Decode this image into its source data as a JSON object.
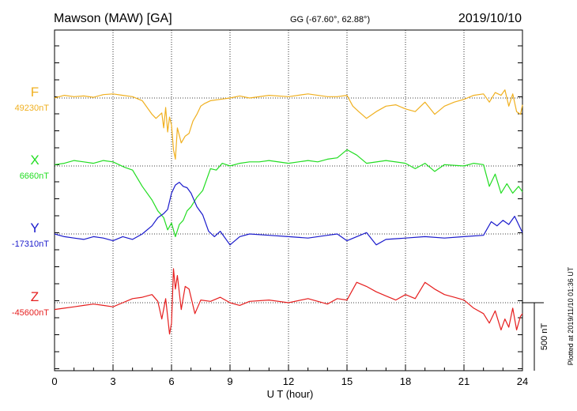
{
  "header": {
    "station": "Mawson (MAW)  [GA]",
    "coords": "GG (-67.60°,  62.88°)",
    "date": "2019/10/10"
  },
  "plotted_note": "Plotted at 2019/11/10 01:36 UT",
  "chart_data": {
    "type": "line",
    "xlabel": "U T (hour)",
    "xlim": [
      0,
      24
    ],
    "xticks": [
      "0",
      "3",
      "6",
      "9",
      "12",
      "15",
      "18",
      "21",
      "24"
    ],
    "scale_bar_label": "500 nT",
    "scale_bar_nT": 500,
    "colors": {
      "F": "#f0b020",
      "X": "#22dd22",
      "Y": "#1a1acc",
      "Z": "#e61e1e",
      "axis": "#000000"
    },
    "series": [
      {
        "name": "F",
        "baseline_label": "49230nT",
        "color": "#f0b020",
        "x": [
          0,
          0.5,
          1,
          1.5,
          2,
          2.5,
          3,
          3.5,
          4,
          4.5,
          5,
          5.2,
          5.5,
          5.6,
          5.7,
          5.8,
          5.9,
          6.0,
          6.1,
          6.2,
          6.3,
          6.5,
          6.7,
          6.9,
          7.1,
          7.3,
          7.5,
          7.7,
          8,
          8.5,
          9,
          9.5,
          10,
          11,
          12,
          13,
          14,
          14.5,
          15,
          15.3,
          15.6,
          16,
          16.5,
          17,
          17.5,
          18,
          18.5,
          19,
          19.5,
          20,
          20.5,
          21,
          21.5,
          22,
          22.3,
          22.6,
          22.9,
          23.1,
          23.3,
          23.5,
          23.7,
          23.9,
          24
        ],
        "values": [
          0,
          20,
          10,
          15,
          5,
          25,
          30,
          20,
          10,
          -20,
          -120,
          -150,
          -110,
          -220,
          -70,
          -250,
          -140,
          -200,
          -380,
          -450,
          -220,
          -330,
          -280,
          -260,
          -170,
          -120,
          -60,
          -40,
          -20,
          -10,
          0,
          15,
          0,
          20,
          10,
          30,
          10,
          10,
          20,
          -60,
          -100,
          -150,
          -100,
          -60,
          -50,
          -80,
          -100,
          -30,
          -120,
          -60,
          -30,
          -10,
          20,
          30,
          -30,
          40,
          20,
          60,
          -60,
          30,
          -100,
          -120,
          -50
        ]
      },
      {
        "name": "X",
        "baseline_label": "6660nT",
        "color": "#22dd22",
        "x": [
          0,
          0.5,
          1,
          1.5,
          2,
          2.5,
          3,
          3.3,
          3.6,
          4,
          4.5,
          5,
          5.3,
          5.6,
          5.8,
          6.0,
          6.2,
          6.4,
          6.6,
          6.8,
          7.0,
          7.3,
          7.6,
          7.8,
          8,
          8.3,
          8.6,
          9,
          9.5,
          10,
          10.5,
          11,
          12,
          13,
          13.5,
          14,
          14.5,
          15,
          15.5,
          16,
          17,
          18,
          18.5,
          19,
          19.5,
          20,
          21,
          21.5,
          22,
          22.3,
          22.6,
          22.9,
          23.2,
          23.5,
          23.8,
          24
        ],
        "values": [
          10,
          20,
          40,
          30,
          20,
          40,
          30,
          10,
          -10,
          -30,
          -150,
          -250,
          -330,
          -380,
          -470,
          -420,
          -520,
          -430,
          -400,
          -330,
          -300,
          -230,
          -180,
          -100,
          -20,
          -30,
          20,
          0,
          20,
          30,
          30,
          40,
          20,
          40,
          30,
          50,
          60,
          120,
          80,
          20,
          40,
          20,
          -20,
          20,
          -40,
          10,
          0,
          20,
          10,
          -150,
          -60,
          -200,
          -130,
          -200,
          -150,
          -190
        ]
      },
      {
        "name": "Y",
        "baseline_label": "-17310nT",
        "color": "#1a1acc",
        "x": [
          0,
          0.5,
          1,
          1.5,
          2,
          2.5,
          3,
          3.5,
          4,
          4.5,
          5,
          5.3,
          5.6,
          5.8,
          6.0,
          6.2,
          6.4,
          6.6,
          6.8,
          7.0,
          7.3,
          7.6,
          7.9,
          8.2,
          8.5,
          9,
          9.5,
          10,
          11,
          12,
          13,
          14,
          14.5,
          15,
          15.5,
          16,
          16.5,
          17,
          18,
          19,
          20,
          21,
          22,
          22.2,
          22.4,
          22.7,
          23,
          23.3,
          23.6,
          23.9,
          24
        ],
        "values": [
          0,
          -20,
          -30,
          -40,
          -20,
          -30,
          -50,
          -20,
          -40,
          0,
          60,
          120,
          150,
          180,
          300,
          360,
          380,
          350,
          340,
          300,
          200,
          140,
          20,
          -20,
          20,
          -80,
          -20,
          0,
          -10,
          -20,
          -30,
          -10,
          0,
          -50,
          -20,
          10,
          -80,
          -40,
          -30,
          -20,
          -30,
          -20,
          -10,
          40,
          90,
          60,
          100,
          70,
          130,
          40,
          10
        ]
      },
      {
        "name": "Z",
        "baseline_label": "-45600nT",
        "color": "#e61e1e",
        "x": [
          0,
          0.5,
          1,
          1.5,
          2,
          2.5,
          3,
          3.5,
          4,
          4.5,
          5,
          5.3,
          5.5,
          5.7,
          5.9,
          6.0,
          6.1,
          6.2,
          6.3,
          6.5,
          6.7,
          6.9,
          7.2,
          7.5,
          8,
          8.5,
          9,
          9.5,
          10,
          11,
          12,
          13,
          14,
          14.5,
          15,
          15.5,
          16,
          16.5,
          17,
          17.5,
          18,
          18.5,
          19,
          19.5,
          20,
          20.5,
          21,
          21.5,
          22,
          22.3,
          22.6,
          22.9,
          23.1,
          23.3,
          23.5,
          23.7,
          23.9,
          24
        ],
        "values": [
          -50,
          -40,
          -30,
          -20,
          -10,
          -20,
          -30,
          0,
          30,
          40,
          60,
          10,
          -120,
          30,
          -230,
          -150,
          250,
          100,
          200,
          -50,
          120,
          100,
          -80,
          20,
          10,
          40,
          0,
          -20,
          10,
          20,
          0,
          30,
          -10,
          30,
          20,
          150,
          120,
          80,
          50,
          20,
          60,
          30,
          150,
          100,
          60,
          40,
          20,
          -40,
          -80,
          -150,
          -60,
          -200,
          -120,
          -180,
          -40,
          -200,
          -100,
          -80
        ]
      }
    ]
  }
}
